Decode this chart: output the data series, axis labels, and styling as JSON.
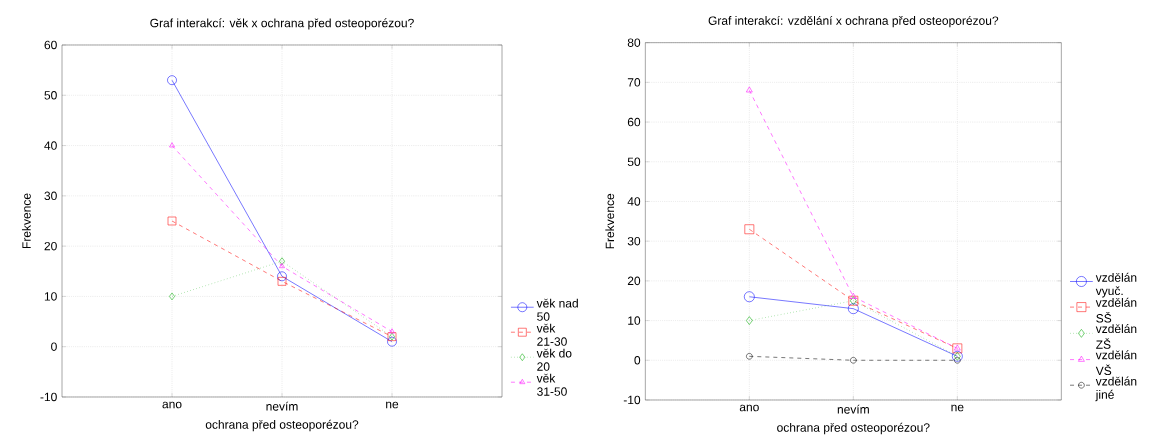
{
  "chart_data": [
    {
      "type": "line",
      "title": "Graf interakcí: věk x ochrana před osteoporézou?",
      "xlabel": "ochrana před osteoporézou?",
      "ylabel": "Frekvence",
      "categories": [
        "ano",
        "nevím",
        "ne"
      ],
      "ylim": [
        -10,
        60
      ],
      "yticks": [
        -10,
        0,
        10,
        20,
        30,
        40,
        50,
        60
      ],
      "grid": true,
      "legend": "bottom right",
      "series": [
        {
          "name": "věk nad 50",
          "color": "#0000ff",
          "marker": "circle",
          "line_style": "solid",
          "values": [
            53,
            14,
            1
          ]
        },
        {
          "name": "věk 21-30",
          "color": "#ff0000",
          "marker": "square",
          "line_style": "dashed",
          "values": [
            25,
            13,
            2
          ]
        },
        {
          "name": "věk do 20",
          "color": "#00aa00",
          "marker": "diamond",
          "line_style": "dotted",
          "values": [
            10,
            17,
            2
          ]
        },
        {
          "name": "věk 31-50",
          "color": "#ff00ff",
          "marker": "triangle",
          "line_style": "dashed",
          "values": [
            40,
            16,
            3
          ]
        }
      ]
    },
    {
      "type": "line",
      "title": "Graf interakcí: vzdělání x ochrana před osteoporézou?",
      "xlabel": "ochrana před osteoporézou?",
      "ylabel": "Frekvence",
      "categories": [
        "ano",
        "nevím",
        "ne"
      ],
      "ylim": [
        -10,
        80
      ],
      "yticks": [
        -10,
        0,
        10,
        20,
        30,
        40,
        50,
        60,
        70,
        80
      ],
      "grid": true,
      "legend": "bottom right",
      "series": [
        {
          "name": "vzdělán vyuč.",
          "color": "#0000ff",
          "marker": "circle",
          "line_style": "solid",
          "values": [
            16,
            13,
            1
          ]
        },
        {
          "name": "vzdělán SŠ",
          "color": "#ff0000",
          "marker": "square",
          "line_style": "dashed",
          "values": [
            33,
            15,
            3
          ]
        },
        {
          "name": "vzdělán ZŠ",
          "color": "#00aa00",
          "marker": "diamond",
          "line_style": "dotted",
          "values": [
            10,
            15,
            1
          ]
        },
        {
          "name": "vzdělán VŠ",
          "color": "#ff00ff",
          "marker": "triangle",
          "line_style": "dashed",
          "values": [
            68,
            16,
            3
          ]
        },
        {
          "name": "vzdělán jiné",
          "color": "#000000",
          "marker": "circle",
          "line_style": "dashed",
          "values": [
            1,
            0,
            0
          ]
        }
      ]
    }
  ]
}
